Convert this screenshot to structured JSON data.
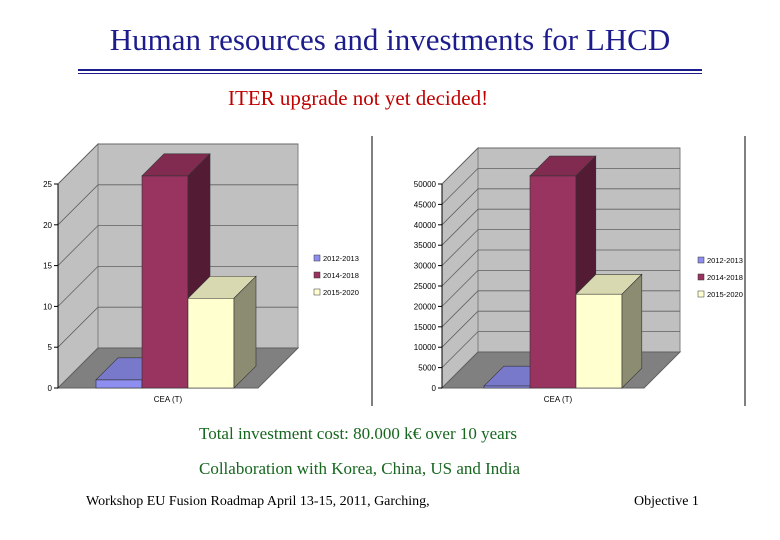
{
  "slide": {
    "title": "Human resources and investments for LHCD",
    "subtitle": "ITER upgrade not yet decided!",
    "notes": [
      "Total investment cost: 80.000 k€ over 10 years",
      "Collaboration with Korea, China, US and India"
    ],
    "footer_left": "Workshop EU Fusion Roadmap April 13-15, 2011, Garching,",
    "footer_right": "Objective 1"
  },
  "colors": {
    "title": "#1c1c8c",
    "subtitle": "#c00000",
    "notes": "#16661e",
    "series": [
      "#8e8ef0",
      "#99335f",
      "#ffffd0"
    ],
    "wall": "#c0c0c0",
    "floor": "#808080"
  },
  "chart_data": [
    {
      "type": "bar",
      "categories": [
        "CEA (T)"
      ],
      "series": [
        {
          "name": "2012-2013",
          "values": [
            1
          ]
        },
        {
          "name": "2014-2018",
          "values": [
            26
          ]
        },
        {
          "name": "2015-2020",
          "values": [
            11
          ]
        }
      ],
      "yticks": [
        "0",
        "5",
        "10",
        "15",
        "20",
        "25"
      ],
      "ylim": [
        0,
        25
      ],
      "grid": true,
      "legend": "right"
    },
    {
      "type": "bar",
      "categories": [
        "CEA (T)"
      ],
      "series": [
        {
          "name": "2012-2013",
          "values": [
            500
          ]
        },
        {
          "name": "2014-2018",
          "values": [
            52000
          ]
        },
        {
          "name": "2015-2020",
          "values": [
            23000
          ]
        }
      ],
      "yticks": [
        "0",
        "5000",
        "10000",
        "15000",
        "20000",
        "25000",
        "30000",
        "35000",
        "40000",
        "45000",
        "50000"
      ],
      "ylim": [
        0,
        50000
      ],
      "grid": true,
      "legend": "right"
    }
  ]
}
